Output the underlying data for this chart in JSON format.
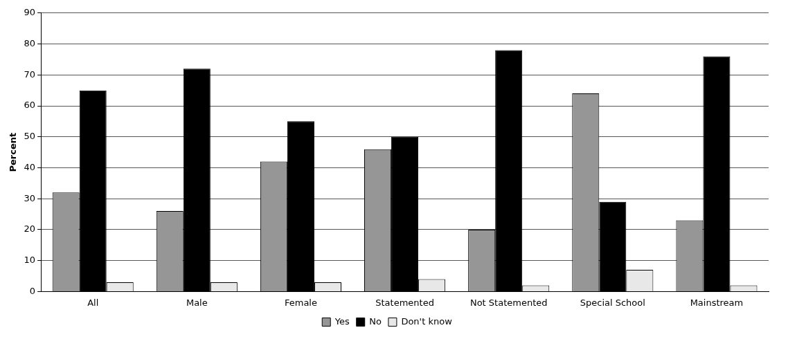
{
  "chart_data": {
    "type": "bar",
    "ylabel": "Percent",
    "categories": [
      "All",
      "Male",
      "Female",
      "Statemented",
      "Not Statemented",
      "Special School",
      "Mainstream"
    ],
    "series": [
      {
        "name": "Yes",
        "color": "#969696",
        "values": [
          32,
          26,
          42,
          46,
          20,
          64,
          23
        ]
      },
      {
        "name": "No",
        "color": "#000000",
        "values": [
          65,
          72,
          55,
          50,
          78,
          29,
          76
        ]
      },
      {
        "name": "Don't know",
        "color": "#e8e8e8",
        "values": [
          3,
          3,
          3,
          4,
          2,
          7,
          2
        ]
      }
    ],
    "ylim": [
      0,
      90
    ],
    "yticks": [
      0,
      10,
      20,
      30,
      40,
      50,
      60,
      70,
      80,
      90
    ],
    "grid": "y",
    "legend": "bottom"
  }
}
